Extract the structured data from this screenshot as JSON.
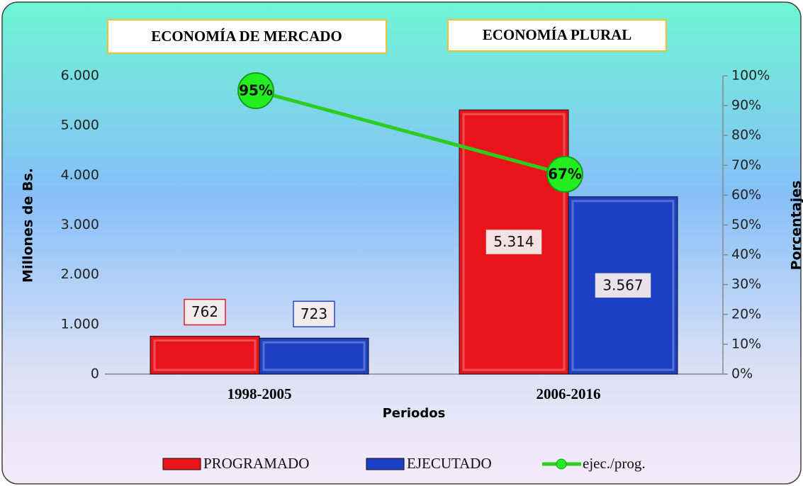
{
  "chart_data": {
    "type": "bar_line",
    "annotations": [
      "ECONOMÍA DE MERCADO",
      "ECONOMÍA PLURAL"
    ],
    "ylabel": "Millones de Bs.",
    "y2label": "Porcentajes",
    "xlabel": "Periodos",
    "categories": [
      "1998-2005",
      "2006-2016"
    ],
    "series": [
      {
        "name": "PROGRAMADO",
        "color": "#e8141a",
        "values": [
          762,
          5314
        ],
        "value_labels": [
          "762",
          "5.314"
        ]
      },
      {
        "name": "EJECUTADO",
        "color": "#1c3fc4",
        "values": [
          723,
          3567
        ],
        "value_labels": [
          "723",
          "3.567"
        ]
      },
      {
        "name": "ejec./prog.",
        "color": "#2ecc1f",
        "axis": "y2",
        "values": [
          95,
          67
        ],
        "value_labels": [
          "95%",
          "67%"
        ]
      }
    ],
    "ylim": [
      0,
      6000
    ],
    "yticks": [
      0,
      {
        "value": 1000,
        "label": "1.000"
      },
      {
        "value": 2000,
        "label": "2.000"
      },
      {
        "value": 3000,
        "label": "3.000"
      },
      {
        "value": 4000,
        "label": "4.000"
      },
      {
        "value": 5000,
        "label": "5.000"
      },
      {
        "value": 6000,
        "label": "6.000"
      }
    ],
    "y2lim": [
      0,
      100
    ],
    "y2ticks": [
      {
        "value": 0,
        "label": "0%"
      },
      {
        "value": 10,
        "label": "10%"
      },
      {
        "value": 20,
        "label": "20%"
      },
      {
        "value": 30,
        "label": "30%"
      },
      {
        "value": 40,
        "label": "40%"
      },
      {
        "value": 50,
        "label": "50%"
      },
      {
        "value": 60,
        "label": "60%"
      },
      {
        "value": 70,
        "label": "70%"
      },
      {
        "value": 80,
        "label": "80%"
      },
      {
        "value": 90,
        "label": "90%"
      },
      {
        "value": 100,
        "label": "100%"
      }
    ],
    "legend": "bottom"
  }
}
